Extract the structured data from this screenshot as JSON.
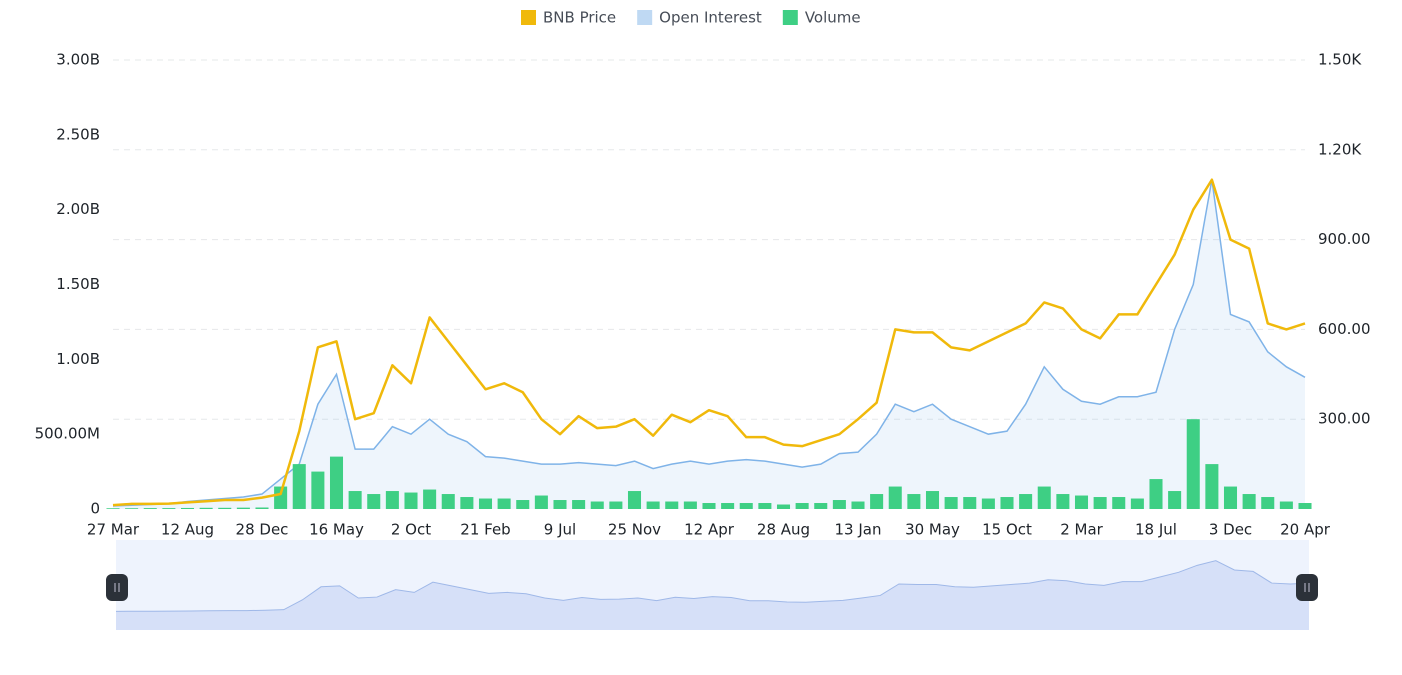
{
  "chart_data": {
    "type": "combo",
    "categories": [
      "27 Mar",
      null,
      null,
      null,
      "12 Aug",
      null,
      null,
      null,
      "28 Dec",
      null,
      null,
      null,
      "16 May",
      null,
      null,
      null,
      "2 Oct",
      null,
      null,
      null,
      "21 Feb",
      null,
      null,
      null,
      "9 Jul",
      null,
      null,
      null,
      "25 Nov",
      null,
      null,
      null,
      "12 Apr",
      null,
      null,
      null,
      "28 Aug",
      null,
      null,
      null,
      "13 Jan",
      null,
      null,
      null,
      "30 May",
      null,
      null,
      null,
      "15 Oct",
      null,
      null,
      null,
      "2 Mar",
      null,
      null,
      null,
      "18 Jul",
      null,
      null,
      null,
      "3 Dec",
      null,
      null,
      null,
      "20 Apr"
    ],
    "series": [
      {
        "name": "BNB Price",
        "type": "line",
        "axis": "y2",
        "color": "#f0b90b",
        "values": [
          13,
          17,
          17,
          18,
          22,
          26,
          30,
          30,
          38,
          50,
          260,
          540,
          560,
          300,
          320,
          480,
          420,
          640,
          560,
          480,
          400,
          420,
          390,
          300,
          250,
          310,
          270,
          275,
          300,
          245,
          315,
          290,
          330,
          310,
          240,
          240,
          215,
          210,
          230,
          250,
          300,
          355,
          600,
          590,
          590,
          540,
          530,
          560,
          590,
          620,
          690,
          670,
          600,
          570,
          650,
          650,
          750,
          850,
          1000,
          1100,
          900,
          870,
          620,
          600,
          620
        ]
      },
      {
        "name": "Open Interest",
        "type": "area",
        "color": "#7fb3e8",
        "values": [
          20000000,
          25000000,
          30000000,
          35000000,
          50000000,
          60000000,
          70000000,
          80000000,
          100000000,
          200000000,
          300000000,
          700000000,
          900000000,
          400000000,
          400000000,
          550000000,
          500000000,
          600000000,
          500000000,
          450000000,
          350000000,
          340000000,
          320000000,
          300000000,
          300000000,
          310000000,
          300000000,
          290000000,
          320000000,
          270000000,
          300000000,
          320000000,
          300000000,
          320000000,
          330000000,
          320000000,
          300000000,
          280000000,
          300000000,
          370000000,
          380000000,
          500000000,
          700000000,
          650000000,
          700000000,
          600000000,
          550000000,
          500000000,
          520000000,
          700000000,
          950000000,
          800000000,
          720000000,
          700000000,
          750000000,
          750000000,
          780000000,
          1200000000,
          1500000000,
          2200000000,
          1300000000,
          1250000000,
          1050000000,
          950000000,
          880000000
        ]
      },
      {
        "name": "Volume",
        "type": "bar",
        "color": "#3ecf84",
        "values": [
          5000000,
          5000000,
          6000000,
          6000000,
          7000000,
          8000000,
          8000000,
          9000000,
          10000000,
          150000000,
          300000000,
          250000000,
          350000000,
          120000000,
          100000000,
          120000000,
          110000000,
          130000000,
          100000000,
          80000000,
          70000000,
          70000000,
          60000000,
          90000000,
          60000000,
          60000000,
          50000000,
          50000000,
          120000000,
          50000000,
          50000000,
          50000000,
          40000000,
          40000000,
          40000000,
          40000000,
          30000000,
          40000000,
          40000000,
          60000000,
          50000000,
          100000000,
          150000000,
          100000000,
          120000000,
          80000000,
          80000000,
          70000000,
          80000000,
          100000000,
          150000000,
          100000000,
          90000000,
          80000000,
          80000000,
          70000000,
          200000000,
          120000000,
          600000000,
          300000000,
          150000000,
          100000000,
          80000000,
          50000000,
          40000000
        ]
      }
    ],
    "ylim": [
      0,
      3000000000
    ],
    "yticks": [
      0,
      {
        "value": 500000000,
        "label": "500.00M"
      },
      {
        "value": 1000000000,
        "label": "1.00B"
      },
      {
        "value": 1500000000,
        "label": "1.50B"
      },
      {
        "value": 2000000000,
        "label": "2.00B"
      },
      {
        "value": 2500000000,
        "label": "2.50B"
      },
      {
        "value": 3000000000,
        "label": "3.00B"
      }
    ],
    "y2lim": [
      0,
      1500
    ],
    "y2ticks": [
      {
        "value": 300,
        "label": "300.00"
      },
      {
        "value": 600,
        "label": "600.00"
      },
      {
        "value": 900,
        "label": "900.00"
      },
      {
        "value": 1200,
        "label": "1.20K"
      },
      {
        "value": 1500,
        "label": "1.50K"
      }
    ],
    "grid": true,
    "legend": "top"
  }
}
